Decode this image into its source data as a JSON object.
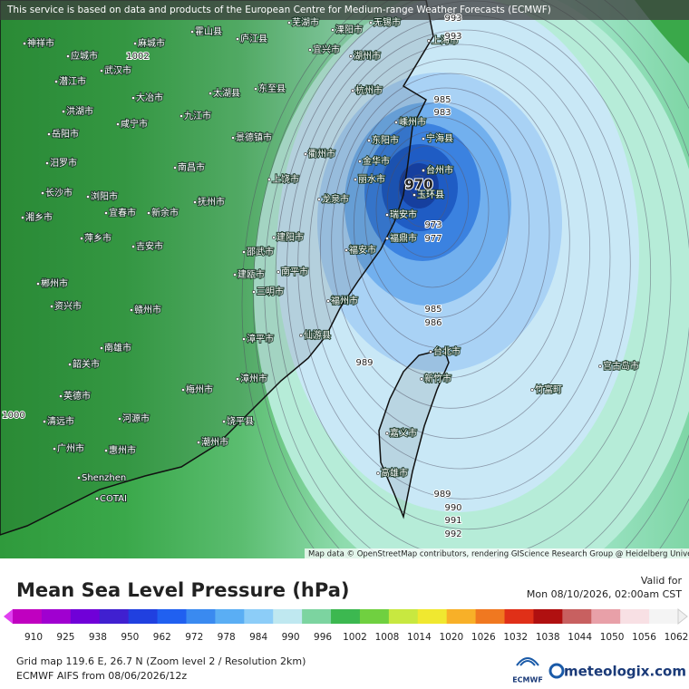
{
  "header": {
    "attribution": "This service is based on data and products of the European Centre for Medium-range Weather Forecasts (ECMWF)"
  },
  "map": {
    "credit": "Map data © OpenStreetMap contributors, rendering GIScience Research Group @ Heidelberg University",
    "city_labels": [
      "神祥市",
      "应城市",
      "麻城市",
      "霍山县",
      "庐江县",
      "芜湖市",
      "溧阳市",
      "无锡市",
      "上海市",
      "宜兴市",
      "湖州市",
      "武汉市",
      "潜江市",
      "大冶市",
      "洪湖市",
      "九江市",
      "咸宁市",
      "太湖县",
      "东至县",
      "杭州市",
      "嵊州市",
      "宁海县",
      "岳阳市",
      "景德镇市",
      "衢州市",
      "东阳市",
      "金华市",
      "汨罗市",
      "南昌市",
      "丽水市",
      "台州市",
      "长沙市",
      "浏阳市",
      "玉环县",
      "上饶市",
      "抚州市",
      "新余市",
      "宜春市",
      "龙泉市",
      "瑞安市",
      "湘乡市",
      "福鼎市",
      "萍乡市",
      "吉安市",
      "建阳市",
      "福安市",
      "邵武市",
      "南平市",
      "建瓯市",
      "郴州市",
      "三明市",
      "福州市",
      "资兴市",
      "赣州市",
      "仙游县",
      "漳平市",
      "南雄市",
      "宫古岛市",
      "台北市",
      "韶关市",
      "新竹市",
      "漳州市",
      "竹富町",
      "梅州市",
      "英德市",
      "清远市",
      "河源市",
      "饶平县",
      "嘉义市",
      "潮州市",
      "广州市",
      "惠州市",
      "高雄市",
      "Shenzhen",
      "COTAI"
    ],
    "isobar_labels": [
      993,
      993,
      985,
      983,
      1002,
      970,
      973,
      977,
      985,
      986,
      989,
      1000,
      989,
      990,
      991,
      992
    ]
  },
  "legend": {
    "title": "Mean Sea Level Pressure (hPa)",
    "valid_label": "Valid for",
    "valid_time": "Mon 08/10/2026, 02:00am CST",
    "scale": [
      910,
      925,
      938,
      950,
      962,
      972,
      978,
      984,
      990,
      996,
      1002,
      1008,
      1014,
      1020,
      1026,
      1032,
      1038,
      1044,
      1050,
      1056,
      1062
    ],
    "grid_info": "Grid map 119.6 E, 26.7 N (Zoom level 2 / Resolution 2km)",
    "model_info": "ECMWF AIFS from  08/06/2026/12z",
    "ecmwf_logo": "ECMWF",
    "brand": "meteologix.com"
  }
}
